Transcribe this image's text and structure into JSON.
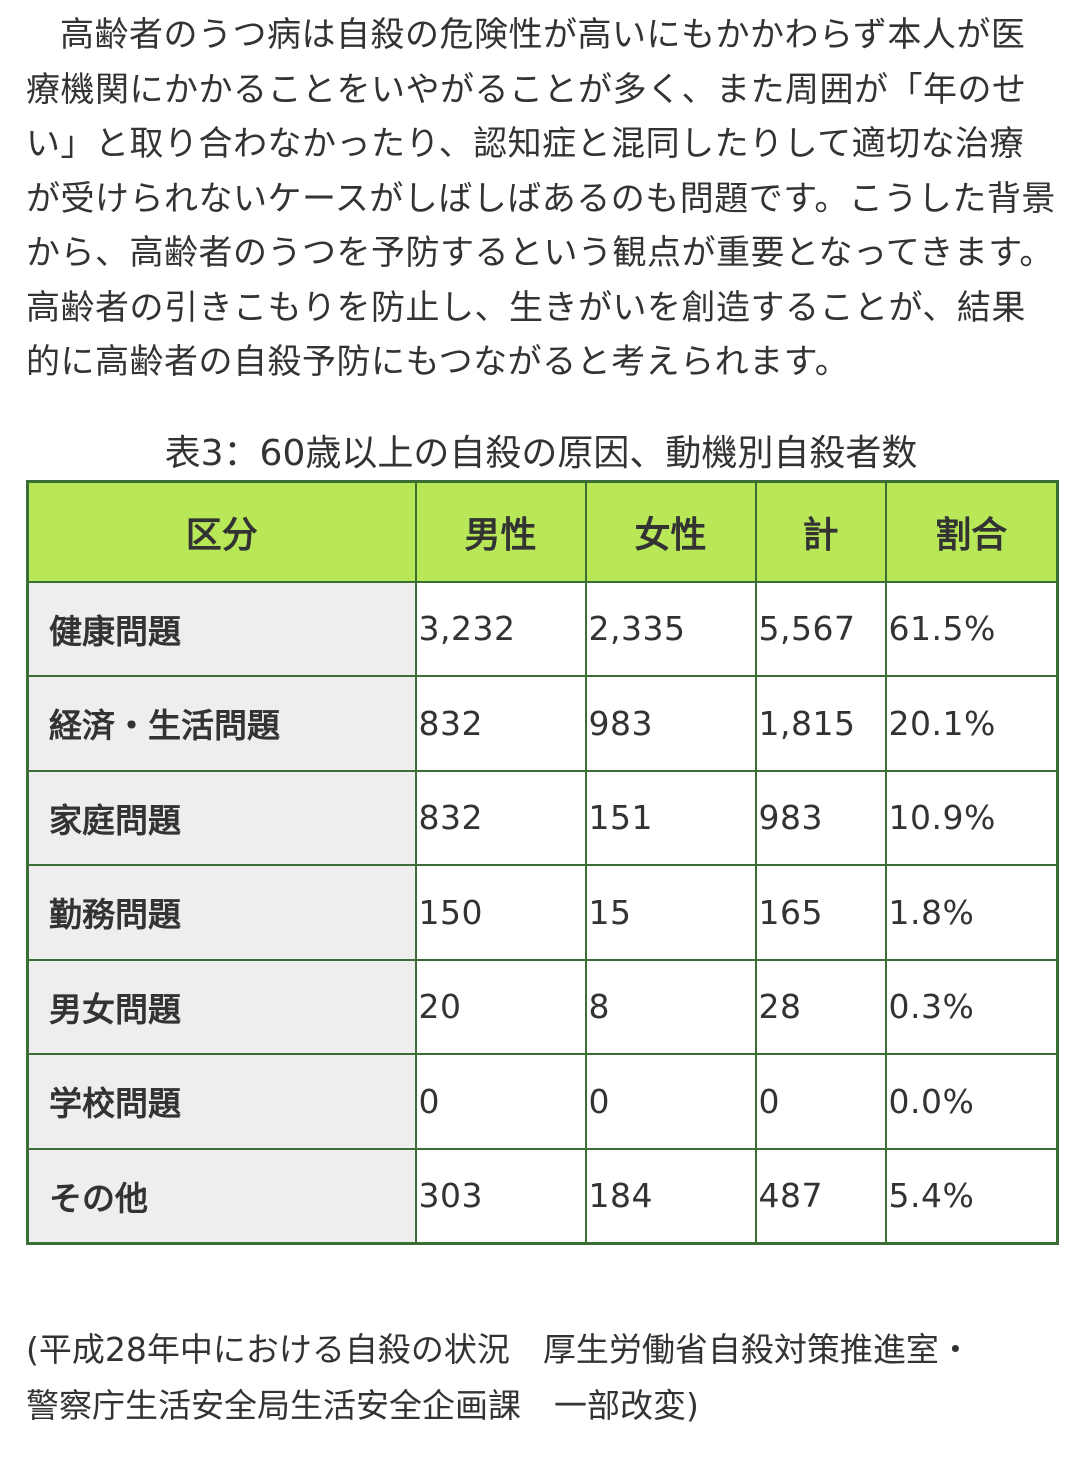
{
  "intro_paragraph": "高齢者のうつ病は自殺の危険性が高いにもかかわらず本人が医療機関にかかることをいやがることが多く、また周囲が「年のせい」と取り合わなかったり、認知症と混同したりして適切な治療が受けられないケースがしばしばあるのも問題です。こうした背景から、高齢者のうつを予防するという観点が重要となってきます。高齢者の引きこもりを防止し、生きがいを創造することが、結果的に高齢者の自殺予防にもつながると考えられます。",
  "table": {
    "caption": "表3：60歳以上の自殺の原因、動機別自殺者数",
    "headers": [
      "区分",
      "男性",
      "女性",
      "計",
      "割合"
    ],
    "rows": [
      {
        "category": "健康問題",
        "male": "3,232",
        "female": "2,335",
        "total": "5,567",
        "ratio": "61.5%"
      },
      {
        "category": "経済・生活問題",
        "male": "832",
        "female": "983",
        "total": "1,815",
        "ratio": "20.1%"
      },
      {
        "category": "家庭問題",
        "male": "832",
        "female": "151",
        "total": "983",
        "ratio": "10.9%"
      },
      {
        "category": "勤務問題",
        "male": "150",
        "female": "15",
        "total": "165",
        "ratio": "1.8%"
      },
      {
        "category": "男女問題",
        "male": "20",
        "female": "8",
        "total": "28",
        "ratio": "0.3%"
      },
      {
        "category": "学校問題",
        "male": "0",
        "female": "0",
        "total": "0",
        "ratio": "0.0%"
      },
      {
        "category": "その他",
        "male": "303",
        "female": "184",
        "total": "487",
        "ratio": "5.4%"
      }
    ]
  },
  "source_line_1": "(平成28年中における自殺の状況　厚生労働省自殺対策推進室・",
  "source_line_2": "警察庁生活安全局生活安全企画課　一部改変)",
  "colors": {
    "header_bg": "#b8e858",
    "row_header_bg": "#eeeeee",
    "border": "#3a6e35",
    "text": "#333333"
  }
}
